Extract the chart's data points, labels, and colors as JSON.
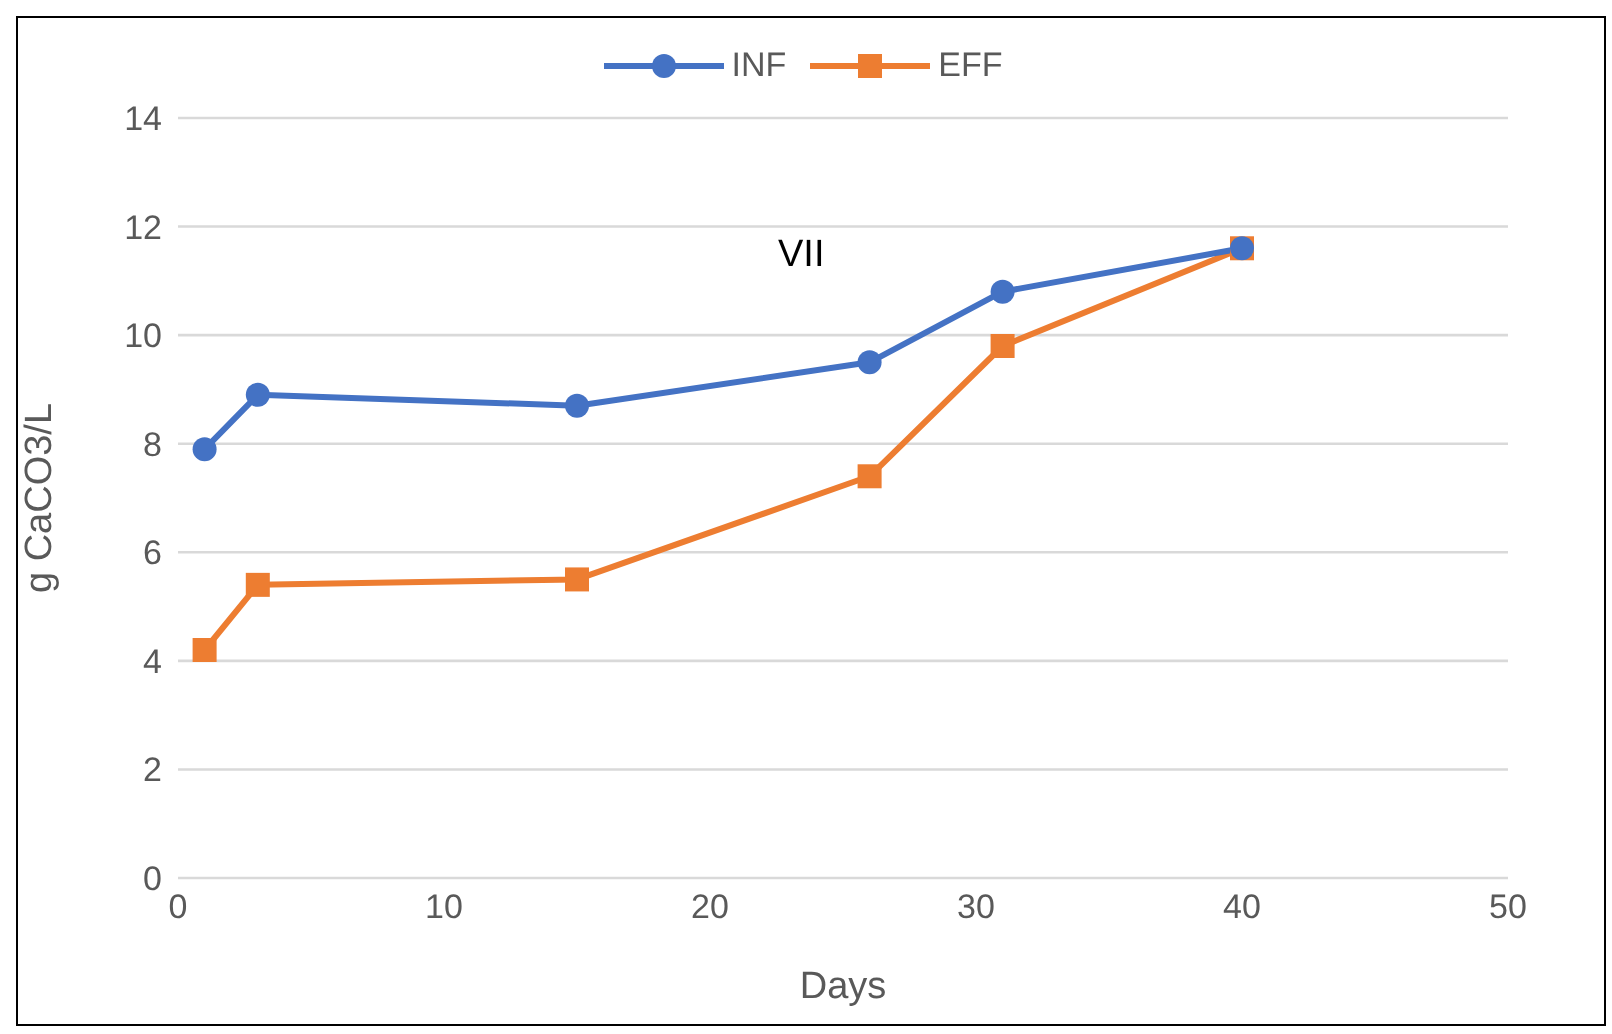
{
  "chart_data": {
    "type": "line",
    "xlabel": "Days",
    "ylabel": "g CaCO3/L",
    "annotations": [
      "VII"
    ],
    "x": [
      1,
      3,
      15,
      26,
      31,
      40
    ],
    "series": [
      {
        "name": "INF",
        "color": "#4472c4",
        "marker": "circle",
        "values": [
          7.9,
          8.9,
          8.7,
          9.5,
          10.8,
          11.6
        ]
      },
      {
        "name": "EFF",
        "color": "#ed7d31",
        "marker": "square",
        "values": [
          4.2,
          5.4,
          5.5,
          7.4,
          9.8,
          11.6
        ]
      }
    ],
    "xlim": [
      0,
      50
    ],
    "xticks": [
      0,
      10,
      20,
      30,
      40,
      50
    ],
    "ylim": [
      0,
      14
    ],
    "yticks": [
      0,
      2,
      4,
      6,
      8,
      10,
      12,
      14
    ],
    "grid": "y",
    "legend": "top",
    "line_style": "solid"
  }
}
